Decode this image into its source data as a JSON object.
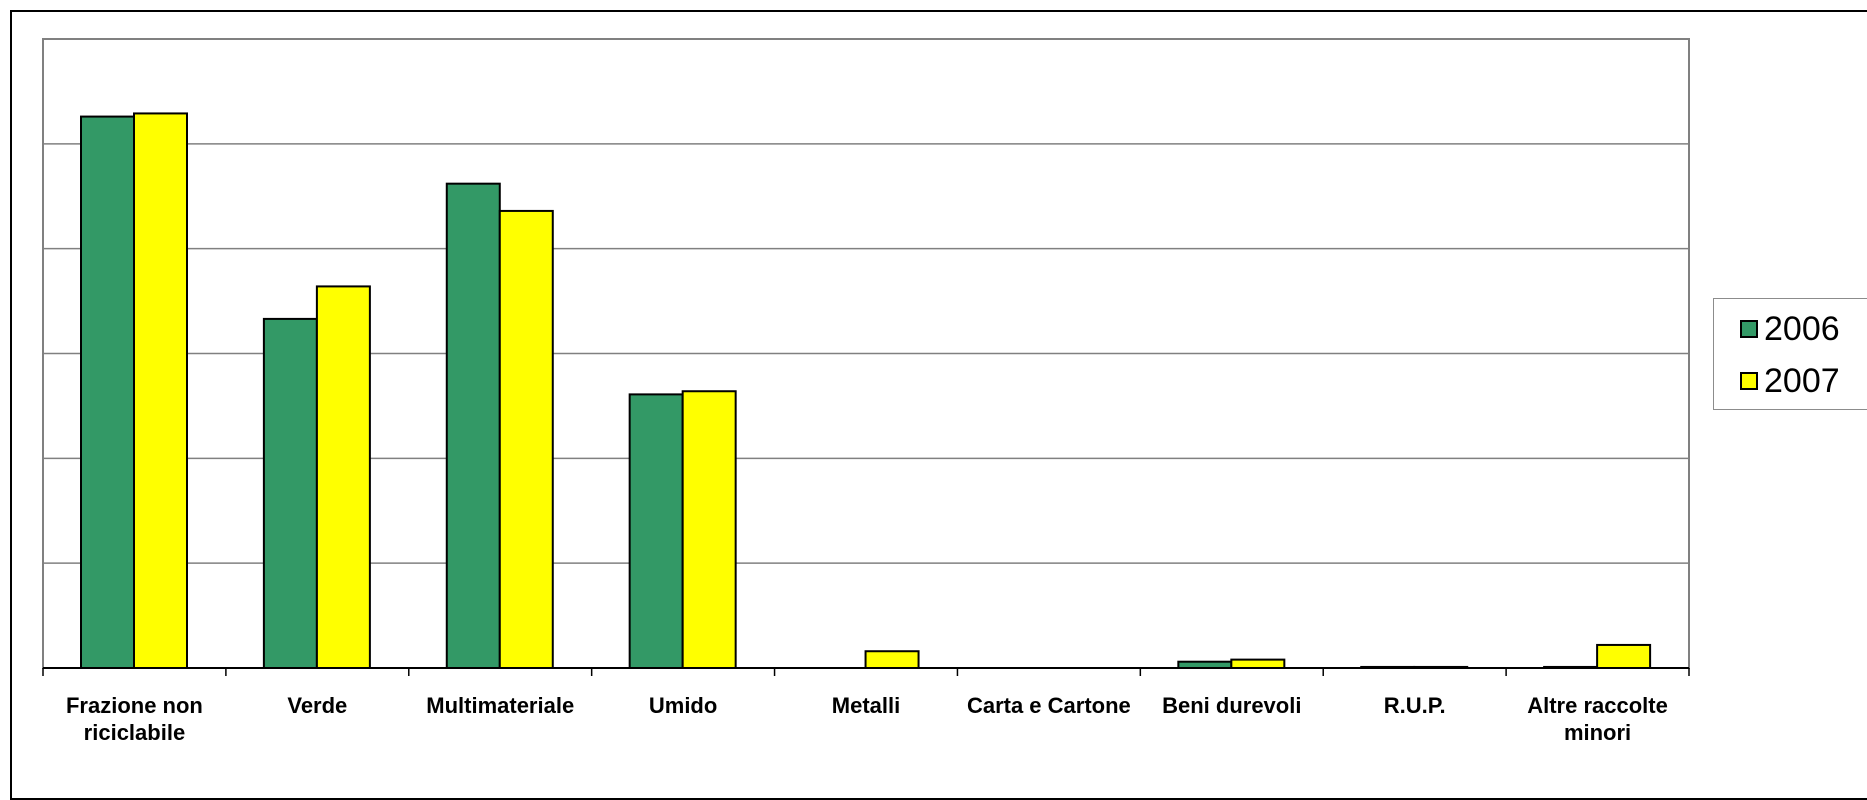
{
  "chart_data": {
    "type": "bar",
    "title": "",
    "xlabel": "",
    "ylabel": "",
    "ylim": [
      0,
      6
    ],
    "grid": true,
    "legend_position": "right",
    "categories": [
      [
        "Frazione non",
        "riciclabile"
      ],
      [
        "Verde"
      ],
      [
        "Multimateriale"
      ],
      [
        "Umido"
      ],
      [
        "Metalli"
      ],
      [
        "Carta e Cartone"
      ],
      [
        "Beni durevoli"
      ],
      [
        "R.U.P."
      ],
      [
        "Altre raccolte",
        "minori"
      ]
    ],
    "series": [
      {
        "name": "2006",
        "color": "#339966",
        "values": [
          5.26,
          3.33,
          4.62,
          2.61,
          0.0,
          0.0,
          0.06,
          0.01,
          0.01
        ]
      },
      {
        "name": "2007",
        "color": "#ffff00",
        "values": [
          5.29,
          3.64,
          4.36,
          2.64,
          0.16,
          0.0,
          0.08,
          0.01,
          0.22
        ]
      }
    ]
  }
}
